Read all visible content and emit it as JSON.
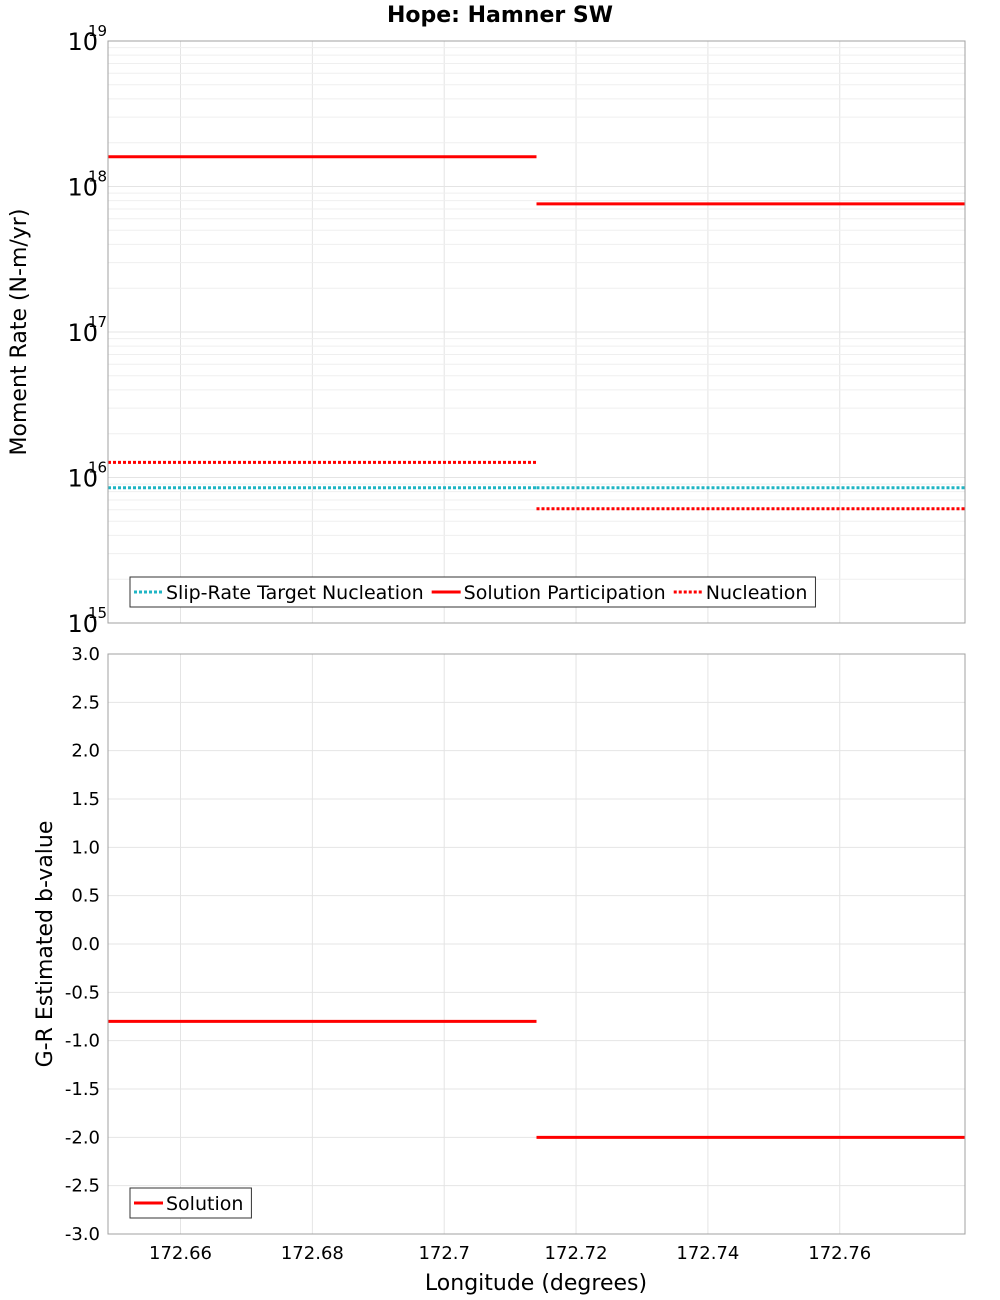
{
  "figure": {
    "title": "Hope: Hamner SW"
  },
  "chart_data": [
    {
      "type": "line",
      "id": "moment",
      "ylabel": "Moment Rate (N-m/yr)",
      "xlabel": "",
      "yscale": "log",
      "ylim": [
        1000000000000000.0,
        1e+19
      ],
      "xlim": [
        172.649,
        172.779
      ],
      "grid": true,
      "y_tick_bases": [
        "10",
        "10",
        "10",
        "10",
        "10"
      ],
      "y_tick_exponents": [
        "15",
        "16",
        "17",
        "18",
        "19"
      ],
      "y_tick_values": [
        1000000000000000.0,
        1e+16,
        1e+17,
        1e+18,
        1e+19
      ],
      "legend": {
        "placement": "bottom-left",
        "items": [
          {
            "label": "Slip-Rate Target Nucleation",
            "color": "#1fb5c4",
            "dash": "dotted"
          },
          {
            "label": "Solution Participation",
            "color": "#ff0000",
            "dash": "solid"
          },
          {
            "label": "Nucleation",
            "color": "#ff0000",
            "dash": "dotted"
          }
        ]
      },
      "series": [
        {
          "name": "Slip-Rate Target Nucleation",
          "color": "#1fb5c4",
          "dash": "dotted",
          "segments": [
            {
              "x": [
                172.649,
                172.714
              ],
              "y": [
                8500000000000000.0,
                8500000000000000.0
              ]
            },
            {
              "x": [
                172.714,
                172.779
              ],
              "y": [
                8500000000000000.0,
                8500000000000000.0
              ]
            }
          ]
        },
        {
          "name": "Solution Participation",
          "color": "#ff0000",
          "dash": "solid",
          "segments": [
            {
              "x": [
                172.649,
                172.714
              ],
              "y": [
                1.6e+18,
                1.6e+18
              ]
            },
            {
              "x": [
                172.714,
                172.779
              ],
              "y": [
                7.6e+17,
                7.6e+17
              ]
            }
          ]
        },
        {
          "name": "Nucleation",
          "color": "#ff0000",
          "dash": "dotted",
          "segments": [
            {
              "x": [
                172.649,
                172.714
              ],
              "y": [
                1.27e+16,
                1.27e+16
              ]
            },
            {
              "x": [
                172.714,
                172.779
              ],
              "y": [
                6100000000000000.0,
                6100000000000000.0
              ]
            }
          ]
        }
      ]
    },
    {
      "type": "line",
      "id": "bvalue",
      "ylabel": "G-R Estimated b-value",
      "xlabel": "Longitude (degrees)",
      "yscale": "linear",
      "ylim": [
        -3.0,
        3.0
      ],
      "xlim": [
        172.649,
        172.779
      ],
      "grid": true,
      "y_tick_labels": [
        "3.0",
        "2.5",
        "2.0",
        "1.5",
        "1.0",
        "0.5",
        "0.0",
        "-0.5",
        "-1.0",
        "-1.5",
        "-2.0",
        "-2.5",
        "-3.0"
      ],
      "y_tick_values": [
        3.0,
        2.5,
        2.0,
        1.5,
        1.0,
        0.5,
        0.0,
        -0.5,
        -1.0,
        -1.5,
        -2.0,
        -2.5,
        -3.0
      ],
      "x_tick_labels": [
        "172.66",
        "172.68",
        "172.7",
        "172.72",
        "172.74",
        "172.76"
      ],
      "x_tick_values": [
        172.66,
        172.68,
        172.7,
        172.72,
        172.74,
        172.76
      ],
      "legend": {
        "placement": "bottom-left",
        "items": [
          {
            "label": "Solution",
            "color": "#ff0000",
            "dash": "solid"
          }
        ]
      },
      "series": [
        {
          "name": "Solution",
          "color": "#ff0000",
          "dash": "solid",
          "segments": [
            {
              "x": [
                172.649,
                172.714
              ],
              "y": [
                -0.8,
                -0.8
              ]
            },
            {
              "x": [
                172.714,
                172.779
              ],
              "y": [
                -2.0,
                -2.0
              ]
            }
          ]
        }
      ]
    }
  ]
}
